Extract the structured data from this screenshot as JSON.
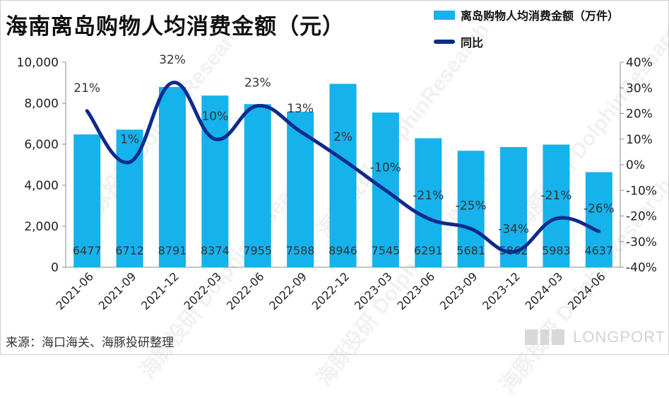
{
  "title": "海南离岛购物人均消费金额（元）",
  "legend": {
    "bar_label": "离岛购物人均消费金额（万件）",
    "line_label": "同比"
  },
  "source": "来源：海口海关、海豚投研整理",
  "brand": "LONGPORT",
  "watermark": "海豚投研 DolphinResearch",
  "colors": {
    "bar": "#16b2ec",
    "line": "#0d2a8c"
  },
  "chart_data": {
    "type": "bar",
    "categories": [
      "2021-06",
      "2021-09",
      "2021-12",
      "2022-03",
      "2022-06",
      "2022-09",
      "2022-12",
      "2023-03",
      "2023-06",
      "2023-09",
      "2023-12",
      "2024-03",
      "2024-06"
    ],
    "series": [
      {
        "name": "离岛购物人均消费金额（万件）",
        "type": "bar",
        "axis": "left",
        "values": [
          6477,
          6712,
          8791,
          8374,
          7955,
          7588,
          8946,
          7545,
          6291,
          5681,
          5862,
          5983,
          4637
        ],
        "labels": [
          "6477",
          "6712",
          "8791",
          "8374",
          "7955",
          "7588",
          "8946",
          "7545",
          "6291",
          "5681",
          "5862",
          "5983",
          "4637"
        ]
      },
      {
        "name": "同比",
        "type": "line",
        "axis": "right",
        "values": [
          21,
          1,
          32,
          10,
          23,
          13,
          2,
          -10,
          -21,
          -25,
          -34,
          -21,
          -26
        ],
        "labels": [
          "21%",
          "1%",
          "32%",
          "10%",
          "23%",
          "13%",
          "2%",
          "-10%",
          "-21%",
          "-25%",
          "-34%",
          "-21%",
          "-26%"
        ]
      }
    ],
    "y_left": {
      "ticks": [
        "0",
        "2,000",
        "4,000",
        "6,000",
        "8,000",
        "10,000"
      ],
      "tick_values": [
        0,
        2000,
        4000,
        6000,
        8000,
        10000
      ],
      "ylim": [
        0,
        10000
      ]
    },
    "y_right": {
      "ticks": [
        "-40%",
        "-30%",
        "-20%",
        "-10%",
        "0%",
        "10%",
        "20%",
        "30%",
        "40%"
      ],
      "tick_values": [
        -40,
        -30,
        -20,
        -10,
        0,
        10,
        20,
        30,
        40
      ],
      "ylim": [
        -40,
        40
      ]
    },
    "grid": false,
    "legend_position": "top-right"
  }
}
